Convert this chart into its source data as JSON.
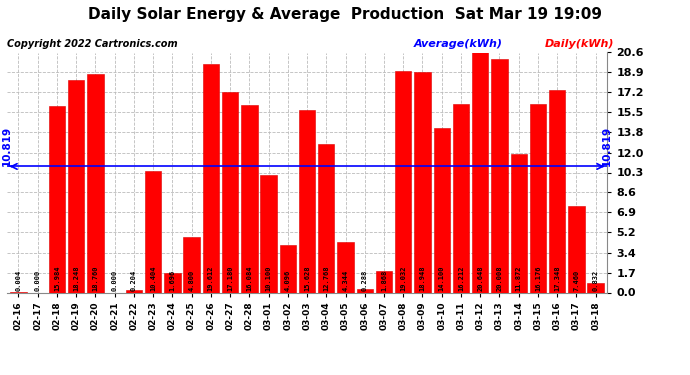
{
  "title": "Daily Solar Energy & Average  Production  Sat Mar 19 19:09",
  "copyright": "Copyright 2022 Cartronics.com",
  "average_label": "Average(kWh)",
  "daily_label": "Daily(kWh)",
  "average_value": 10.819,
  "categories": [
    "02-16",
    "02-17",
    "02-18",
    "02-19",
    "02-20",
    "02-21",
    "02-22",
    "02-23",
    "02-24",
    "02-25",
    "02-26",
    "02-27",
    "02-28",
    "03-01",
    "03-02",
    "03-03",
    "03-04",
    "03-05",
    "03-06",
    "03-07",
    "03-08",
    "03-09",
    "03-10",
    "03-11",
    "03-12",
    "03-13",
    "03-14",
    "03-15",
    "03-16",
    "03-17",
    "03-18"
  ],
  "values": [
    0.004,
    0.0,
    15.984,
    18.248,
    18.76,
    0.0,
    0.204,
    10.404,
    1.696,
    4.8,
    19.612,
    17.18,
    16.084,
    10.1,
    4.096,
    15.628,
    12.768,
    4.344,
    0.288,
    1.868,
    19.032,
    18.948,
    14.1,
    16.212,
    20.648,
    20.008,
    11.872,
    16.176,
    17.348,
    7.46,
    0.832
  ],
  "bar_color": "#ff0000",
  "line_color": "#0000ff",
  "avg_text_color": "#0000ff",
  "daily_text_color": "#ff0000",
  "title_color": "#000000",
  "copyright_color": "#000000",
  "background_color": "#ffffff",
  "grid_color": "#bbbbbb",
  "ylim": [
    0.0,
    20.6
  ],
  "yticks": [
    0.0,
    1.7,
    3.4,
    5.2,
    6.9,
    8.6,
    10.3,
    12.0,
    13.8,
    15.5,
    17.2,
    18.9,
    20.6
  ],
  "bar_edge_color": "#dd0000",
  "label_fontsize": 5.0,
  "xtick_fontsize": 6.5,
  "ytick_fontsize": 8.0,
  "title_fontsize": 11,
  "copyright_fontsize": 7.0,
  "legend_fontsize": 8.0
}
